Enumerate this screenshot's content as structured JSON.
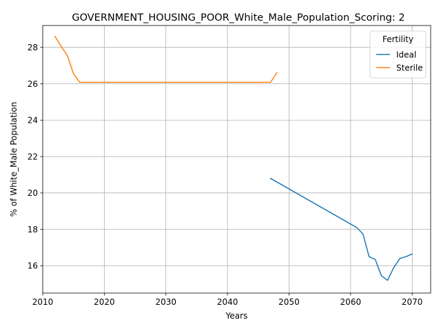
{
  "chart_data": {
    "type": "line",
    "title": "GOVERNMENT_HOUSING_POOR_White_Male_Population_Scoring: 2",
    "xlabel": "Years",
    "ylabel": "% of White_Male Population",
    "xlim": [
      2010,
      2073
    ],
    "ylim": [
      14.5,
      29.2
    ],
    "xticks": [
      2010,
      2020,
      2030,
      2040,
      2050,
      2060,
      2070
    ],
    "yticks": [
      16,
      18,
      20,
      22,
      24,
      26,
      28
    ],
    "grid": true,
    "legend": {
      "title": "Fertility",
      "position": "top-right"
    },
    "series": [
      {
        "name": "Ideal",
        "color": "#1f77b4",
        "x": [
          2047,
          2061,
          2062,
          2063,
          2064,
          2065,
          2066,
          2067,
          2068,
          2069,
          2070
        ],
        "y": [
          20.8,
          18.1,
          17.75,
          16.5,
          16.35,
          15.45,
          15.2,
          15.9,
          16.4,
          16.5,
          16.65
        ]
      },
      {
        "name": "Sterile",
        "color": "#ff7f0e",
        "x": [
          2012,
          2013,
          2014,
          2015,
          2016,
          2020,
          2030,
          2040,
          2047,
          2048
        ],
        "y": [
          28.6,
          28.05,
          27.55,
          26.55,
          26.08,
          26.08,
          26.08,
          26.08,
          26.08,
          26.6
        ]
      }
    ]
  }
}
